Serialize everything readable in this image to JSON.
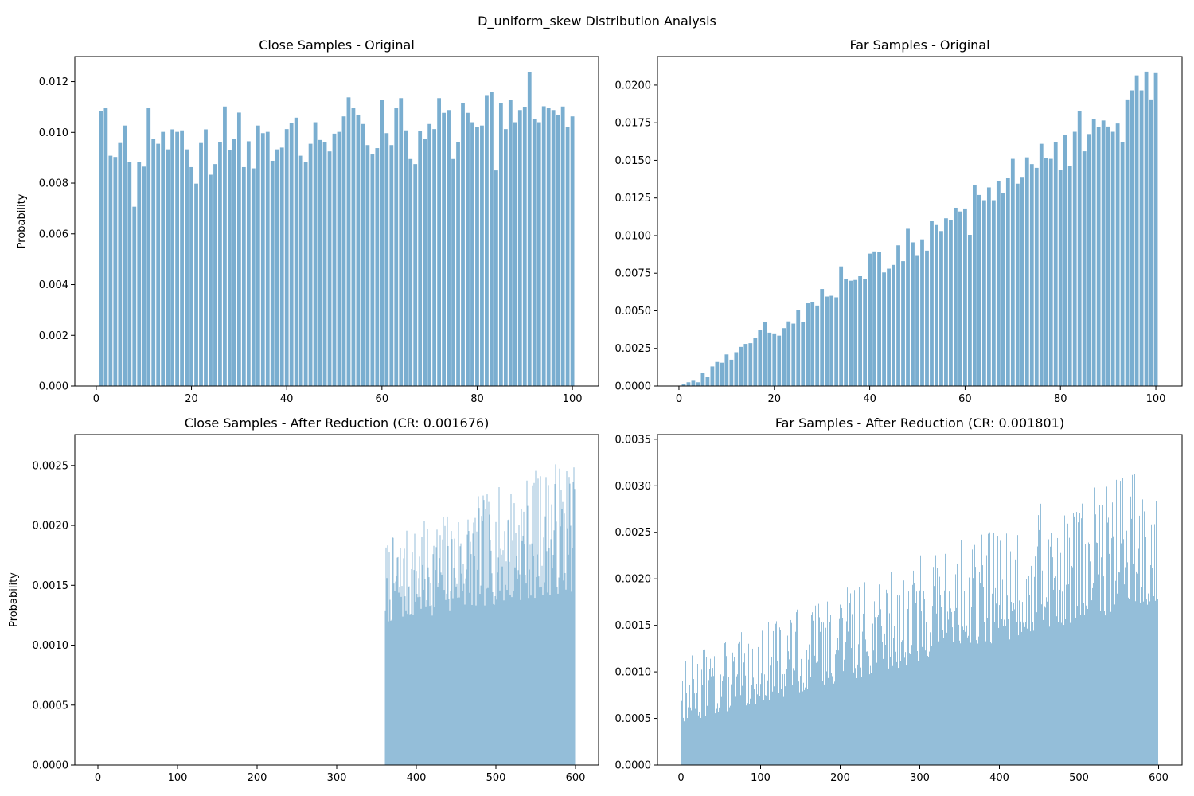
{
  "figure": {
    "suptitle": "D_uniform_skew Distribution Analysis",
    "bar_color": "#7aaed0",
    "axis_color": "#000000"
  },
  "chart_data": [
    {
      "id": "close-original",
      "type": "bar",
      "title": "Close Samples - Original",
      "xlabel": "",
      "ylabel": "Probability",
      "xlim": [
        -4.5,
        105.5
      ],
      "ylim": [
        0,
        0.01299
      ],
      "xticks": [
        0,
        20,
        40,
        60,
        80,
        100
      ],
      "yticks": [
        0.0,
        0.002,
        0.004,
        0.006,
        0.008,
        0.01,
        0.012
      ],
      "ytick_labels": [
        "0.000",
        "0.002",
        "0.004",
        "0.006",
        "0.008",
        "0.010",
        "0.012"
      ],
      "bar_width": 0.8,
      "x_start": 1,
      "values": [
        0.01085,
        0.01095,
        0.00908,
        0.00903,
        0.00958,
        0.01027,
        0.00882,
        0.00707,
        0.00882,
        0.00865,
        0.01095,
        0.00975,
        0.00955,
        0.01002,
        0.00933,
        0.01012,
        0.01002,
        0.01008,
        0.00933,
        0.00863,
        0.00798,
        0.00958,
        0.01012,
        0.00833,
        0.00875,
        0.00963,
        0.01102,
        0.0093,
        0.00975,
        0.01078,
        0.00863,
        0.00965,
        0.00858,
        0.01027,
        0.00997,
        0.01002,
        0.00888,
        0.00933,
        0.0094,
        0.01013,
        0.01037,
        0.01058,
        0.00908,
        0.00882,
        0.00955,
        0.0104,
        0.0097,
        0.00963,
        0.00925,
        0.00995,
        0.01002,
        0.01063,
        0.01138,
        0.01095,
        0.0107,
        0.01033,
        0.0095,
        0.00913,
        0.00938,
        0.01128,
        0.00997,
        0.0095,
        0.01095,
        0.01135,
        0.01008,
        0.00895,
        0.00875,
        0.01007,
        0.00975,
        0.01033,
        0.01013,
        0.01135,
        0.01077,
        0.01088,
        0.00895,
        0.00963,
        0.01115,
        0.01077,
        0.0104,
        0.0102,
        0.01027,
        0.01147,
        0.01158,
        0.0085,
        0.01115,
        0.01013,
        0.01128,
        0.0104,
        0.01088,
        0.011,
        0.01238,
        0.01053,
        0.0104,
        0.01103,
        0.01095,
        0.01088,
        0.0107,
        0.01102,
        0.0102,
        0.01063
      ]
    },
    {
      "id": "far-original",
      "type": "bar",
      "title": "Far Samples - Original",
      "xlabel": "",
      "ylabel": "",
      "xlim": [
        -4.5,
        105.5
      ],
      "ylim": [
        0,
        0.0219
      ],
      "xticks": [
        0,
        20,
        40,
        60,
        80,
        100
      ],
      "yticks": [
        0.0,
        0.0025,
        0.005,
        0.0075,
        0.01,
        0.0125,
        0.015,
        0.0175,
        0.02
      ],
      "ytick_labels": [
        "0.0000",
        "0.0025",
        "0.0050",
        "0.0075",
        "0.0100",
        "0.0125",
        "0.0150",
        "0.0175",
        "0.0200"
      ],
      "bar_width": 0.8,
      "x_start": 1,
      "values": [
        0.00015,
        0.00025,
        0.00035,
        0.00025,
        0.00085,
        0.0006,
        0.0013,
        0.0016,
        0.00155,
        0.0021,
        0.00175,
        0.00225,
        0.0026,
        0.0028,
        0.00285,
        0.0032,
        0.00375,
        0.00425,
        0.00355,
        0.0035,
        0.00335,
        0.00385,
        0.0043,
        0.00415,
        0.00505,
        0.00425,
        0.0055,
        0.0056,
        0.00535,
        0.00645,
        0.00595,
        0.006,
        0.0059,
        0.00795,
        0.0071,
        0.007,
        0.00705,
        0.0073,
        0.0071,
        0.0088,
        0.00895,
        0.0089,
        0.00755,
        0.0078,
        0.00805,
        0.00935,
        0.0083,
        0.01045,
        0.00955,
        0.0087,
        0.00975,
        0.009,
        0.01095,
        0.0107,
        0.0103,
        0.01115,
        0.01105,
        0.01185,
        0.0116,
        0.0118,
        0.01005,
        0.01335,
        0.0127,
        0.01235,
        0.0132,
        0.01235,
        0.0136,
        0.01285,
        0.01385,
        0.0151,
        0.01345,
        0.0139,
        0.0152,
        0.01475,
        0.0145,
        0.0161,
        0.01515,
        0.0151,
        0.0162,
        0.01435,
        0.0167,
        0.0146,
        0.0169,
        0.01825,
        0.0156,
        0.01675,
        0.01775,
        0.0172,
        0.01765,
        0.01725,
        0.0169,
        0.01745,
        0.0162,
        0.01905,
        0.01965,
        0.02065,
        0.01965,
        0.0209,
        0.01905,
        0.0208
      ]
    },
    {
      "id": "close-reduced",
      "type": "bar",
      "title": "Close Samples - After Reduction (CR: 0.001676)",
      "xlabel": "",
      "ylabel": "Probability",
      "xlim": [
        -29,
        629
      ],
      "ylim": [
        0,
        0.002758
      ],
      "xticks": [
        0,
        100,
        200,
        300,
        400,
        500,
        600
      ],
      "yticks": [
        0.0,
        0.0005,
        0.001,
        0.0015,
        0.002,
        0.0025
      ],
      "ytick_labels": [
        "0.0000",
        "0.0005",
        "0.0010",
        "0.0015",
        "0.0020",
        "0.0025"
      ],
      "bar_width": 0.8,
      "x_start": 1,
      "values": [],
      "generator": {
        "nonzero_from": 361,
        "nonzero_to": 599,
        "base": 0.00118,
        "trend_end": 0.00145,
        "amplitude_min": 0.001,
        "amplitude_max": 0.00262,
        "seed": 7
      }
    },
    {
      "id": "far-reduced",
      "type": "bar",
      "title": "Far Samples - After Reduction (CR: 0.001801)",
      "xlabel": "",
      "ylabel": "",
      "xlim": [
        -29.5,
        629.5
      ],
      "ylim": [
        0,
        0.00355
      ],
      "xticks": [
        0,
        100,
        200,
        300,
        400,
        500,
        600
      ],
      "yticks": [
        0.0,
        0.0005,
        0.001,
        0.0015,
        0.002,
        0.0025,
        0.003,
        0.0035
      ],
      "ytick_labels": [
        "0.0000",
        "0.0005",
        "0.0010",
        "0.0015",
        "0.0020",
        "0.0025",
        "0.0030",
        "0.0035"
      ],
      "bar_width": 0.8,
      "x_start": 0,
      "values": [],
      "generator": {
        "nonzero_from": 0,
        "nonzero_to": 599,
        "base_start": 0.00045,
        "base_end": 0.00175,
        "peak_start": 0.00115,
        "peak_end": 0.00335,
        "seed": 13
      }
    }
  ]
}
